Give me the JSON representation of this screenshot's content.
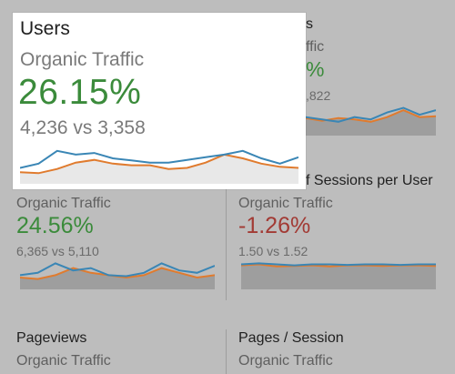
{
  "colors": {
    "background": "#bdbdbd",
    "card_highlight": "#ffffff",
    "positive": "#3b8b3b",
    "negative": "#a23a34",
    "series_current": "#3a86b5",
    "series_previous": "#e07b2e",
    "spark_fill_dim": "#9e9e9e",
    "spark_fill_light": "#e8e8e8"
  },
  "popup": {
    "title": "Users",
    "metric": "Organic Traffic",
    "percent": "26.15%",
    "compare": "4,236 vs 3,358",
    "current": [
      30,
      38,
      62,
      55,
      58,
      48,
      44,
      40,
      40,
      45,
      50,
      55,
      62,
      48,
      38,
      50
    ],
    "previous": [
      22,
      20,
      28,
      40,
      45,
      38,
      35,
      35,
      28,
      30,
      40,
      55,
      48,
      38,
      32,
      30
    ]
  },
  "top_right": {
    "title_partial": "s",
    "metric_partial": "ffic",
    "percent_partial": "%",
    "compare_partial": ",822",
    "current": [
      40,
      35,
      30,
      40,
      35,
      50,
      60,
      45,
      55
    ],
    "previous": [
      38,
      32,
      38,
      35,
      30,
      40,
      55,
      40,
      42
    ]
  },
  "mid_left": {
    "metric": "Organic Traffic",
    "percent": "24.56%",
    "compare": "6,365 vs 5,110",
    "current": [
      30,
      35,
      55,
      40,
      45,
      30,
      28,
      35,
      55,
      40,
      35,
      50
    ],
    "previous": [
      25,
      22,
      30,
      45,
      35,
      30,
      25,
      30,
      45,
      35,
      25,
      30
    ]
  },
  "mid_right": {
    "title_partial": "f Sessions per User",
    "metric": "Organic Traffic",
    "percent": "-1.26%",
    "compare": "1.50 vs 1.52",
    "current": [
      50,
      52,
      50,
      48,
      50,
      50,
      49,
      50,
      50,
      49,
      50,
      50
    ],
    "previous": [
      48,
      50,
      46,
      47,
      48,
      46,
      48,
      48,
      47,
      48,
      48,
      47
    ]
  },
  "bottom_left": {
    "title": "Pageviews",
    "metric": "Organic Traffic"
  },
  "bottom_right": {
    "title": "Pages / Session",
    "metric": "Organic Traffic"
  }
}
